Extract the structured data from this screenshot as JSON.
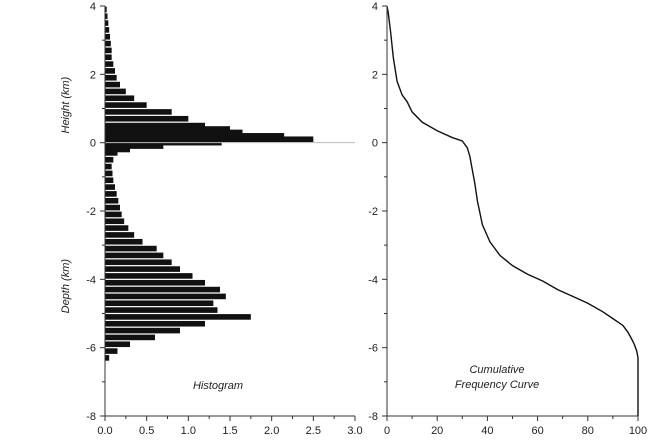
{
  "chart_data": [
    {
      "type": "bar",
      "orientation": "horizontal",
      "title": "",
      "annotation": "Histogram",
      "xlabel": "",
      "ylabel_upper": "Height (km)",
      "ylabel_lower": "Depth (km)",
      "xlim": [
        0.0,
        3.0
      ],
      "ylim": [
        -8,
        4
      ],
      "xticks": [
        "0.0",
        "0.5",
        "1.0",
        "1.5",
        "2.0",
        "2.5",
        "3.0"
      ],
      "yticks": [
        "4",
        "2",
        "0",
        "-2",
        "-4",
        "-6",
        "-8"
      ],
      "grid": false,
      "bar_color": "#111111",
      "y": [
        3.9,
        3.7,
        3.5,
        3.3,
        3.1,
        2.9,
        2.7,
        2.5,
        2.3,
        2.1,
        1.9,
        1.7,
        1.5,
        1.3,
        1.1,
        0.9,
        0.7,
        0.5,
        0.4,
        0.3,
        0.2,
        0.1,
        0.0,
        -0.1,
        -0.2,
        -0.3,
        -0.5,
        -0.7,
        -0.9,
        -1.1,
        -1.3,
        -1.5,
        -1.7,
        -1.9,
        -2.1,
        -2.3,
        -2.5,
        -2.7,
        -2.9,
        -3.1,
        -3.3,
        -3.5,
        -3.7,
        -3.9,
        -4.1,
        -4.3,
        -4.5,
        -4.7,
        -4.9,
        -5.1,
        -5.3,
        -5.5,
        -5.7,
        -5.9,
        -6.1,
        -6.3
      ],
      "values": [
        0.02,
        0.03,
        0.04,
        0.05,
        0.06,
        0.07,
        0.08,
        0.08,
        0.1,
        0.12,
        0.14,
        0.18,
        0.25,
        0.35,
        0.5,
        0.8,
        1.0,
        1.2,
        1.5,
        1.65,
        2.15,
        2.5,
        1.4,
        0.7,
        0.3,
        0.15,
        0.1,
        0.08,
        0.09,
        0.1,
        0.12,
        0.14,
        0.16,
        0.18,
        0.2,
        0.23,
        0.28,
        0.35,
        0.45,
        0.62,
        0.7,
        0.8,
        0.9,
        1.05,
        1.2,
        1.38,
        1.45,
        1.3,
        1.35,
        1.75,
        1.2,
        0.9,
        0.6,
        0.3,
        0.15,
        0.05
      ]
    },
    {
      "type": "line",
      "title": "",
      "annotation_lines": [
        "Cumulative",
        "Frequency Curve"
      ],
      "xlabel": "",
      "ylabel": "",
      "xlim": [
        0,
        100
      ],
      "ylim": [
        -8,
        4
      ],
      "xticks": [
        "0",
        "20",
        "40",
        "60",
        "80",
        "100"
      ],
      "yticks": [
        "4",
        "2",
        "0",
        "-2",
        "-4",
        "-6",
        "-8"
      ],
      "grid": false,
      "line_color": "#111111",
      "x": [
        0,
        0.5,
        1.5,
        2.5,
        4,
        6,
        8,
        10,
        14,
        20,
        26,
        30,
        32,
        33,
        34,
        35,
        36,
        38,
        41,
        45,
        50,
        56,
        62,
        68,
        74,
        80,
        86,
        90,
        94,
        96,
        97.5,
        98.5,
        99.5,
        100,
        100
      ],
      "y": [
        4.0,
        3.8,
        3.2,
        2.5,
        1.8,
        1.4,
        1.2,
        0.9,
        0.6,
        0.35,
        0.15,
        0.05,
        -0.15,
        -0.4,
        -0.8,
        -1.2,
        -1.7,
        -2.4,
        -2.9,
        -3.3,
        -3.6,
        -3.85,
        -4.05,
        -4.3,
        -4.5,
        -4.7,
        -4.95,
        -5.15,
        -5.35,
        -5.55,
        -5.75,
        -5.9,
        -6.1,
        -6.3,
        -8.0
      ]
    }
  ]
}
